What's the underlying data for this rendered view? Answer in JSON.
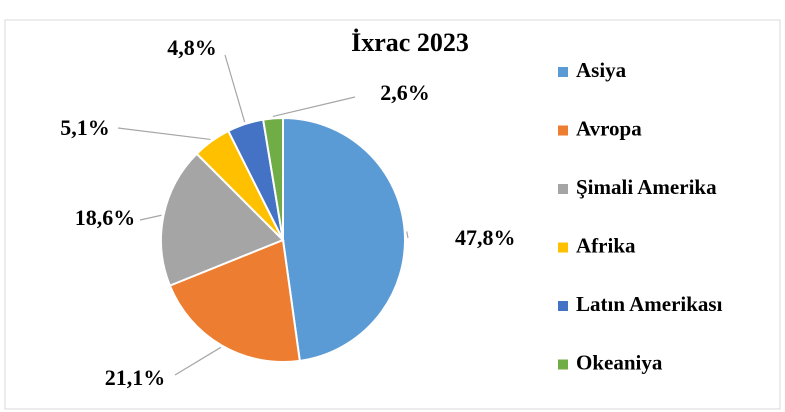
{
  "chart_data": {
    "type": "pie",
    "title": "İxrac 2023",
    "categories": [
      "Asiya",
      "Avropa",
      "Şimali Amerika",
      "Afrika",
      "Latın Amerikası",
      "Okeaniya"
    ],
    "values": [
      47.8,
      21.1,
      18.6,
      5.1,
      4.8,
      2.6
    ],
    "value_labels": [
      "47,8%",
      "21,1%",
      "18,6%",
      "5,1%",
      "4,8%",
      "2,6%"
    ],
    "colors": [
      "#5b9bd5",
      "#ed7d31",
      "#a5a5a5",
      "#ffc000",
      "#4472c4",
      "#70ad47"
    ],
    "legend": "right"
  }
}
